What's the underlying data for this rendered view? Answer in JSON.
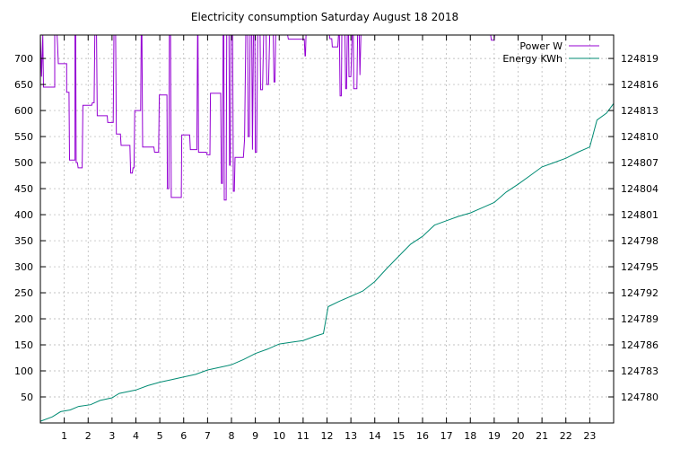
{
  "chart_data": {
    "type": "line",
    "title": "Electricity consumption Saturday August 18 2018",
    "xlabel": "",
    "ylabel": "",
    "y2label": "",
    "xlim": [
      0,
      24
    ],
    "ylim": [
      0,
      745
    ],
    "y2lim": [
      124777.0,
      124821.7
    ],
    "xticks": [
      "1",
      "2",
      "3",
      "4",
      "5",
      "6",
      "7",
      "8",
      "9",
      "10",
      "11",
      "12",
      "13",
      "14",
      "15",
      "16",
      "17",
      "18",
      "19",
      "20",
      "21",
      "22",
      "23"
    ],
    "yticks": [
      50,
      100,
      150,
      200,
      250,
      300,
      350,
      400,
      450,
      500,
      550,
      600,
      650,
      700
    ],
    "y2ticks": [
      124780,
      124783,
      124786,
      124789,
      124792,
      124795,
      124798,
      124801,
      124804,
      124807,
      124810,
      124813,
      124816,
      124819
    ],
    "grid": true,
    "legend_position": "top-right",
    "series": [
      {
        "name": "Power W",
        "axis": "left",
        "color": "#9400d3",
        "points": [
          [
            0.0,
            745
          ],
          [
            0.05,
            665
          ],
          [
            0.1,
            745
          ],
          [
            0.13,
            645
          ],
          [
            0.6,
            645
          ],
          [
            0.6,
            745
          ],
          [
            0.7,
            745
          ],
          [
            0.72,
            725
          ],
          [
            0.75,
            690
          ],
          [
            1.1,
            690
          ],
          [
            1.1,
            635
          ],
          [
            1.2,
            635
          ],
          [
            1.22,
            505
          ],
          [
            1.45,
            505
          ],
          [
            1.45,
            745
          ],
          [
            1.48,
            745
          ],
          [
            1.5,
            500
          ],
          [
            1.55,
            500
          ],
          [
            1.58,
            490
          ],
          [
            1.75,
            490
          ],
          [
            1.78,
            610
          ],
          [
            2.15,
            610
          ],
          [
            2.18,
            615
          ],
          [
            2.25,
            615
          ],
          [
            2.28,
            745
          ],
          [
            2.35,
            745
          ],
          [
            2.38,
            590
          ],
          [
            2.8,
            590
          ],
          [
            2.82,
            577
          ],
          [
            3.05,
            577
          ],
          [
            3.08,
            745
          ],
          [
            3.15,
            745
          ],
          [
            3.18,
            555
          ],
          [
            3.35,
            555
          ],
          [
            3.38,
            533
          ],
          [
            3.75,
            533
          ],
          [
            3.78,
            480
          ],
          [
            3.85,
            480
          ],
          [
            3.88,
            490
          ],
          [
            3.92,
            490
          ],
          [
            3.95,
            600
          ],
          [
            4.2,
            600
          ],
          [
            4.22,
            745
          ],
          [
            4.25,
            745
          ],
          [
            4.28,
            530
          ],
          [
            4.75,
            530
          ],
          [
            4.78,
            520
          ],
          [
            4.95,
            520
          ],
          [
            4.98,
            630
          ],
          [
            5.3,
            630
          ],
          [
            5.32,
            450
          ],
          [
            5.38,
            450
          ],
          [
            5.4,
            745
          ],
          [
            5.45,
            745
          ],
          [
            5.48,
            433
          ],
          [
            5.9,
            433
          ],
          [
            5.92,
            553
          ],
          [
            6.25,
            553
          ],
          [
            6.28,
            525
          ],
          [
            6.55,
            525
          ],
          [
            6.58,
            745
          ],
          [
            6.6,
            745
          ],
          [
            6.62,
            520
          ],
          [
            6.95,
            520
          ],
          [
            6.98,
            515
          ],
          [
            7.1,
            515
          ],
          [
            7.12,
            633
          ],
          [
            7.55,
            633
          ],
          [
            7.58,
            460
          ],
          [
            7.62,
            460
          ],
          [
            7.65,
            745
          ],
          [
            7.68,
            745
          ],
          [
            7.7,
            428
          ],
          [
            7.78,
            428
          ],
          [
            7.8,
            745
          ],
          [
            7.9,
            745
          ],
          [
            7.92,
            495
          ],
          [
            7.95,
            495
          ],
          [
            7.98,
            745
          ],
          [
            8.05,
            745
          ],
          [
            8.08,
            445
          ],
          [
            8.12,
            445
          ],
          [
            8.15,
            510
          ],
          [
            8.5,
            510
          ],
          [
            8.55,
            545
          ],
          [
            8.6,
            745
          ],
          [
            8.68,
            745
          ],
          [
            8.7,
            550
          ],
          [
            8.75,
            550
          ],
          [
            8.78,
            745
          ],
          [
            8.85,
            745
          ],
          [
            8.88,
            525
          ],
          [
            8.92,
            745
          ],
          [
            8.98,
            745
          ],
          [
            9.0,
            520
          ],
          [
            9.05,
            520
          ],
          [
            9.1,
            745
          ],
          [
            9.2,
            745
          ],
          [
            9.22,
            640
          ],
          [
            9.3,
            640
          ],
          [
            9.35,
            745
          ],
          [
            9.45,
            745
          ],
          [
            9.48,
            650
          ],
          [
            9.55,
            650
          ],
          [
            9.6,
            745
          ],
          [
            9.75,
            745
          ],
          [
            9.78,
            655
          ],
          [
            9.82,
            655
          ],
          [
            9.85,
            745
          ],
          [
            10.35,
            745
          ],
          [
            10.38,
            737
          ],
          [
            11.05,
            737
          ],
          [
            11.08,
            705
          ],
          [
            11.1,
            705
          ],
          [
            11.12,
            745
          ],
          [
            12.1,
            745
          ],
          [
            12.12,
            738
          ],
          [
            12.2,
            738
          ],
          [
            12.22,
            722
          ],
          [
            12.45,
            722
          ],
          [
            12.48,
            745
          ],
          [
            12.52,
            745
          ],
          [
            12.55,
            628
          ],
          [
            12.6,
            628
          ],
          [
            12.62,
            745
          ],
          [
            12.75,
            745
          ],
          [
            12.78,
            642
          ],
          [
            12.82,
            642
          ],
          [
            12.85,
            745
          ],
          [
            12.9,
            745
          ],
          [
            12.92,
            665
          ],
          [
            13.0,
            665
          ],
          [
            13.05,
            745
          ],
          [
            13.1,
            745
          ],
          [
            13.12,
            642
          ],
          [
            13.25,
            642
          ],
          [
            13.28,
            745
          ],
          [
            13.35,
            745
          ],
          [
            13.38,
            668
          ],
          [
            13.42,
            745
          ],
          [
            18.85,
            745
          ],
          [
            18.88,
            735
          ],
          [
            19.0,
            735
          ],
          [
            19.02,
            745
          ],
          [
            24.0,
            745
          ]
        ]
      },
      {
        "name": "Energy KWh",
        "axis": "right",
        "color": "#008b73",
        "points": [
          [
            0.0,
            124777.2
          ],
          [
            0.5,
            124777.7
          ],
          [
            0.85,
            124778.3
          ],
          [
            1.25,
            124778.5
          ],
          [
            1.6,
            124778.9
          ],
          [
            2.1,
            124779.1
          ],
          [
            2.5,
            124779.6
          ],
          [
            3.0,
            124779.9
          ],
          [
            3.3,
            124780.4
          ],
          [
            4.0,
            124780.8
          ],
          [
            4.5,
            124781.3
          ],
          [
            5.0,
            124781.7
          ],
          [
            5.5,
            124782.0
          ],
          [
            6.0,
            124782.3
          ],
          [
            6.5,
            124782.6
          ],
          [
            7.0,
            124783.1
          ],
          [
            7.5,
            124783.4
          ],
          [
            8.0,
            124783.7
          ],
          [
            8.5,
            124784.3
          ],
          [
            9.0,
            124785.0
          ],
          [
            9.5,
            124785.5
          ],
          [
            10.0,
            124786.1
          ],
          [
            10.5,
            124786.3
          ],
          [
            11.0,
            124786.5
          ],
          [
            11.5,
            124787.0
          ],
          [
            11.85,
            124787.3
          ],
          [
            12.05,
            124790.4
          ],
          [
            12.5,
            124791.0
          ],
          [
            13.0,
            124791.6
          ],
          [
            13.5,
            124792.2
          ],
          [
            14.0,
            124793.3
          ],
          [
            14.5,
            124794.8
          ],
          [
            15.0,
            124796.2
          ],
          [
            15.5,
            124797.6
          ],
          [
            16.0,
            124798.5
          ],
          [
            16.5,
            124799.8
          ],
          [
            17.0,
            124800.3
          ],
          [
            17.5,
            124800.8
          ],
          [
            18.0,
            124801.2
          ],
          [
            18.5,
            124801.8
          ],
          [
            19.0,
            124802.4
          ],
          [
            19.5,
            124803.6
          ],
          [
            20.0,
            124804.5
          ],
          [
            20.5,
            124805.5
          ],
          [
            21.0,
            124806.5
          ],
          [
            21.5,
            124807.0
          ],
          [
            22.0,
            124807.5
          ],
          [
            22.5,
            124808.2
          ],
          [
            23.0,
            124808.8
          ],
          [
            23.3,
            124811.9
          ],
          [
            23.7,
            124812.7
          ],
          [
            24.0,
            124813.8
          ]
        ]
      }
    ]
  }
}
